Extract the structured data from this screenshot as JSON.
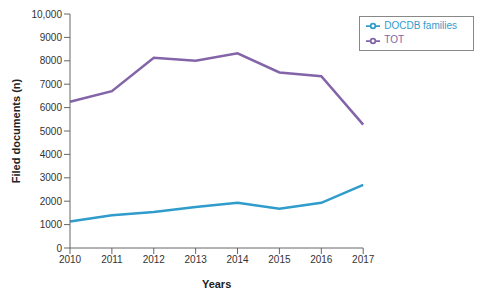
{
  "chart_data": {
    "type": "line",
    "x_label": "Years",
    "y_label": "Filed documents (n)",
    "categories": [
      "2010",
      "2011",
      "2012",
      "2013",
      "2014",
      "2015",
      "2016",
      "2017"
    ],
    "series": [
      {
        "name": "DOCDB families",
        "color": "#2f9ccb",
        "values": [
          1130,
          1400,
          1540,
          1750,
          1930,
          1680,
          1930,
          2700
        ]
      },
      {
        "name": "TOT",
        "color": "#8364a8",
        "values": [
          6250,
          6700,
          8130,
          8000,
          8320,
          7500,
          7340,
          5270
        ]
      }
    ],
    "ylim": [
      0,
      10000
    ],
    "yticks": [
      0,
      1000,
      2000,
      3000,
      4000,
      5000,
      6000,
      7000,
      8000,
      9000,
      {
        "value": 10000,
        "label": "10,000"
      }
    ],
    "grid": false,
    "legend": "upper right"
  }
}
